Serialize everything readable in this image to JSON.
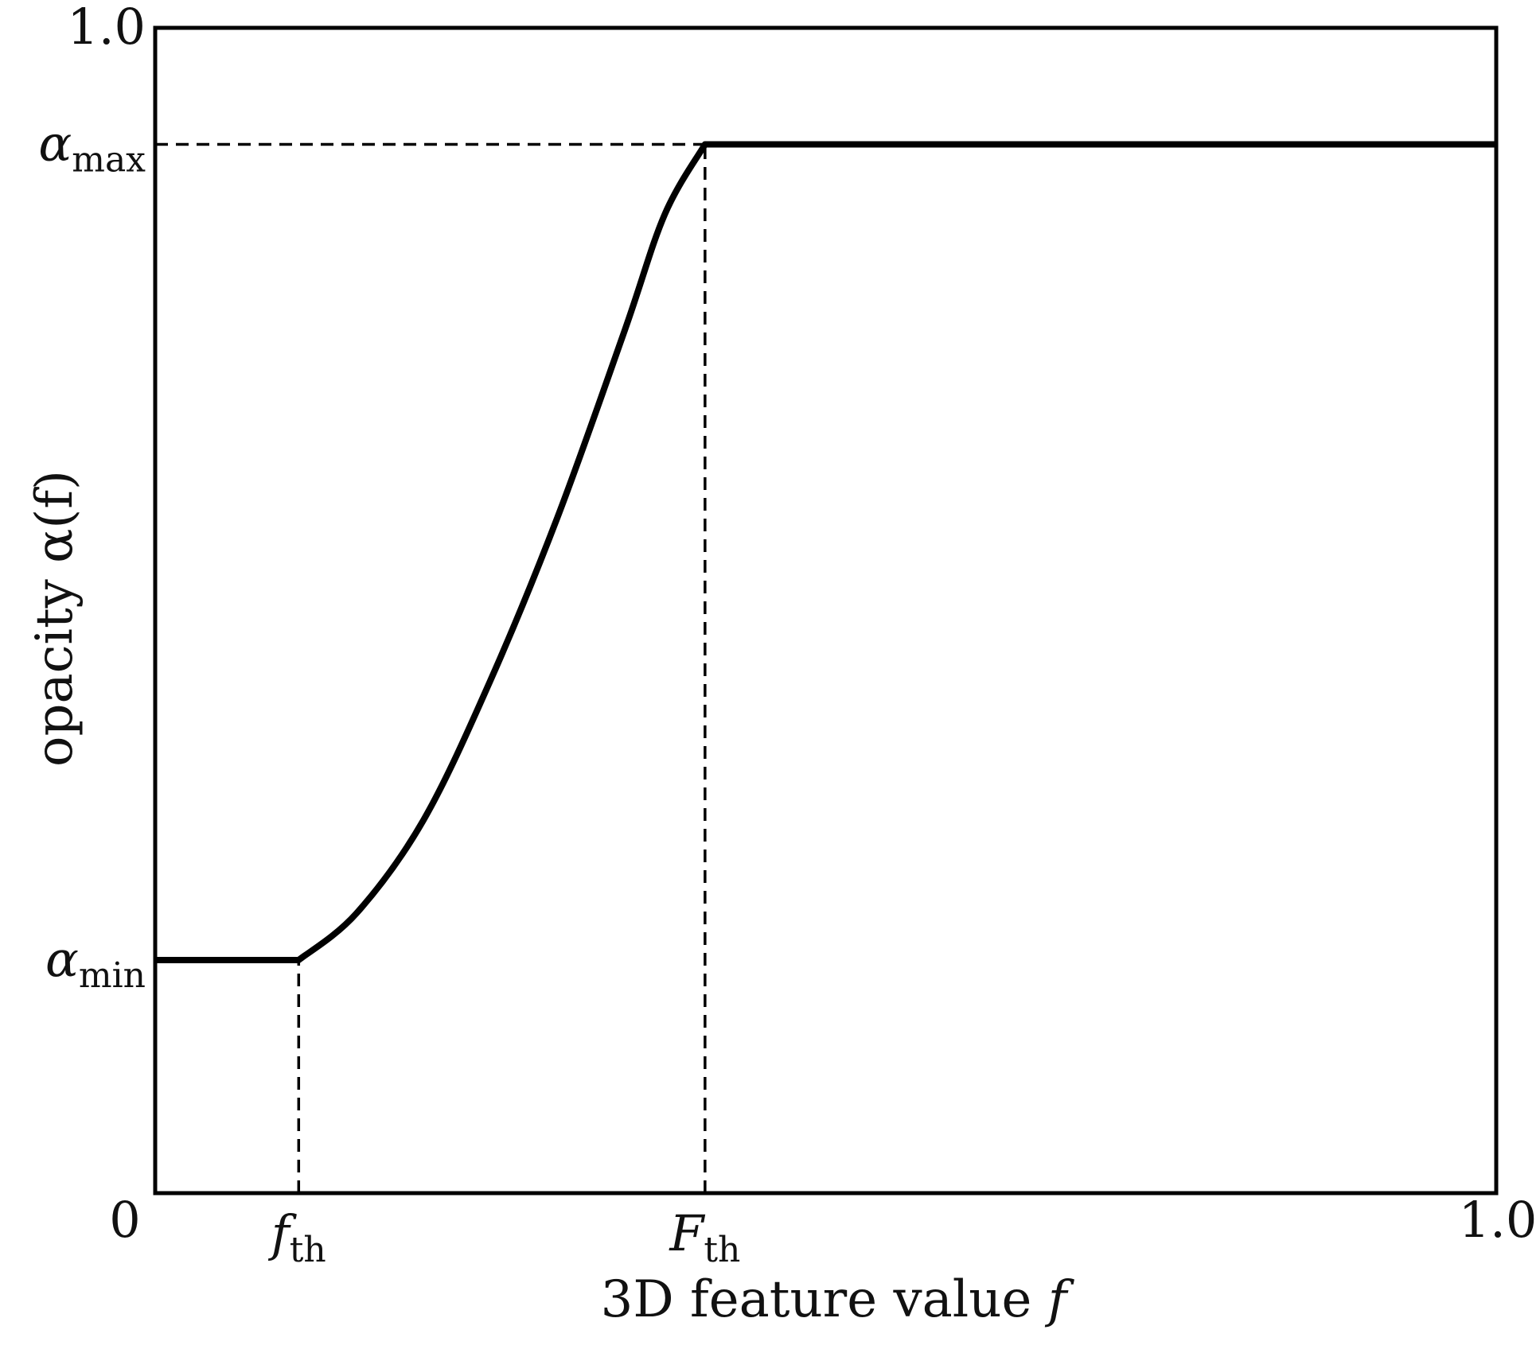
{
  "chart_data": {
    "type": "line",
    "title": "",
    "xlabel": "3D feature value",
    "xlabel_var": "f",
    "ylabel": "opacity α(f)",
    "xlim": [
      0,
      1.0
    ],
    "ylim": [
      0,
      1.0
    ],
    "x_ticks": [
      {
        "value": 0,
        "label": "0",
        "sub": ""
      },
      {
        "value": 0.107,
        "label": "f",
        "sub": "th"
      },
      {
        "value": 0.41,
        "label": "F",
        "sub": "th"
      },
      {
        "value": 1.0,
        "label": "1.0",
        "sub": ""
      }
    ],
    "y_ticks": [
      {
        "value": 1.0,
        "label": "1.0",
        "sub": ""
      },
      {
        "value": 0.9,
        "label": "α",
        "sub": "max"
      },
      {
        "value": 0.2,
        "label": "α",
        "sub": "min"
      }
    ],
    "x": [
      0.0,
      0.107,
      0.15,
      0.2,
      0.25,
      0.3,
      0.35,
      0.38,
      0.41,
      0.5,
      0.6,
      0.7,
      0.8,
      0.9,
      1.0
    ],
    "y": [
      0.2,
      0.2,
      0.24,
      0.32,
      0.44,
      0.58,
      0.74,
      0.84,
      0.9,
      0.9,
      0.9,
      0.9,
      0.9,
      0.9,
      0.9
    ],
    "reference_lines": [
      {
        "type": "horizontal",
        "value": 0.9,
        "from_x": 0,
        "to_x": 0.41
      },
      {
        "type": "vertical",
        "value": 0.107,
        "from_y": 0,
        "to_y": 0.2
      },
      {
        "type": "vertical",
        "value": 0.41,
        "from_y": 0,
        "to_y": 0.9
      }
    ],
    "grid": false,
    "legend": "none",
    "colors": {
      "line": "#000000",
      "frame": "#000000",
      "text": "#111111"
    }
  }
}
